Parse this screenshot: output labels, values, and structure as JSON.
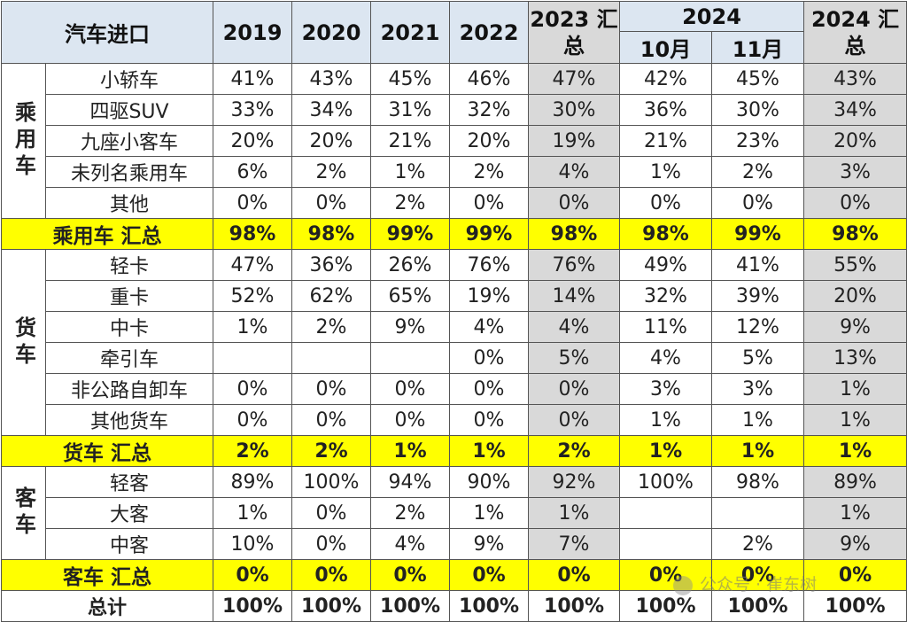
{
  "header": {
    "title": "汽车进口",
    "years": [
      "2019",
      "2020",
      "2021",
      "2022"
    ],
    "y2023": "2023 汇总",
    "y2024": "2024",
    "m10": "10月",
    "m11": "11月",
    "y2024sum": "2024 汇总"
  },
  "groups": {
    "passenger": "乘用车",
    "truck": "货车",
    "bus": "客车"
  },
  "rows": [
    {
      "label": "小轿车",
      "v": [
        "41%",
        "43%",
        "45%",
        "46%",
        "47%",
        "42%",
        "45%",
        "43%"
      ]
    },
    {
      "label": "四驱SUV",
      "v": [
        "33%",
        "34%",
        "31%",
        "32%",
        "30%",
        "36%",
        "30%",
        "34%"
      ]
    },
    {
      "label": "九座小客车",
      "v": [
        "20%",
        "20%",
        "21%",
        "20%",
        "19%",
        "21%",
        "23%",
        "20%"
      ]
    },
    {
      "label": "未列名乘用车",
      "v": [
        "6%",
        "2%",
        "1%",
        "2%",
        "4%",
        "1%",
        "2%",
        "3%"
      ]
    },
    {
      "label": "其他",
      "v": [
        "0%",
        "0%",
        "2%",
        "0%",
        "0%",
        "0%",
        "0%",
        "0%"
      ]
    },
    {
      "label": "乘用车 汇总",
      "v": [
        "98%",
        "98%",
        "99%",
        "99%",
        "98%",
        "98%",
        "99%",
        "98%"
      ]
    },
    {
      "label": "轻卡",
      "v": [
        "47%",
        "36%",
        "26%",
        "76%",
        "76%",
        "49%",
        "41%",
        "55%"
      ]
    },
    {
      "label": "重卡",
      "v": [
        "52%",
        "62%",
        "65%",
        "19%",
        "14%",
        "32%",
        "39%",
        "20%"
      ]
    },
    {
      "label": "中卡",
      "v": [
        "1%",
        "2%",
        "9%",
        "4%",
        "4%",
        "11%",
        "12%",
        "9%"
      ]
    },
    {
      "label": "牵引车",
      "v": [
        "",
        "",
        "",
        "0%",
        "5%",
        "4%",
        "5%",
        "13%"
      ]
    },
    {
      "label": "非公路自卸车",
      "v": [
        "0%",
        "0%",
        "0%",
        "0%",
        "0%",
        "3%",
        "3%",
        "1%"
      ]
    },
    {
      "label": "其他货车",
      "v": [
        "0%",
        "0%",
        "0%",
        "0%",
        "0%",
        "1%",
        "1%",
        "1%"
      ]
    },
    {
      "label": "货车 汇总",
      "v": [
        "2%",
        "2%",
        "1%",
        "1%",
        "2%",
        "1%",
        "1%",
        "1%"
      ]
    },
    {
      "label": "轻客",
      "v": [
        "89%",
        "100%",
        "94%",
        "90%",
        "92%",
        "100%",
        "98%",
        "89%"
      ]
    },
    {
      "label": "大客",
      "v": [
        "1%",
        "0%",
        "2%",
        "1%",
        "1%",
        "",
        "",
        "1%"
      ]
    },
    {
      "label": "中客",
      "v": [
        "10%",
        "0%",
        "4%",
        "9%",
        "7%",
        "",
        "2%",
        "9%"
      ]
    },
    {
      "label": "客车 汇总",
      "v": [
        "0%",
        "0%",
        "0%",
        "0%",
        "0%",
        "0%",
        "0%",
        "0%"
      ]
    },
    {
      "label": "总计",
      "v": [
        "100%",
        "100%",
        "100%",
        "100%",
        "100%",
        "100%",
        "100%",
        "100%"
      ]
    }
  ],
  "watermark": "公众号 · 崔东树",
  "colors": {
    "header_bg": "#dce6f1",
    "summary_bg": "#ffff00",
    "shaded_col": "#d9d9d9"
  }
}
